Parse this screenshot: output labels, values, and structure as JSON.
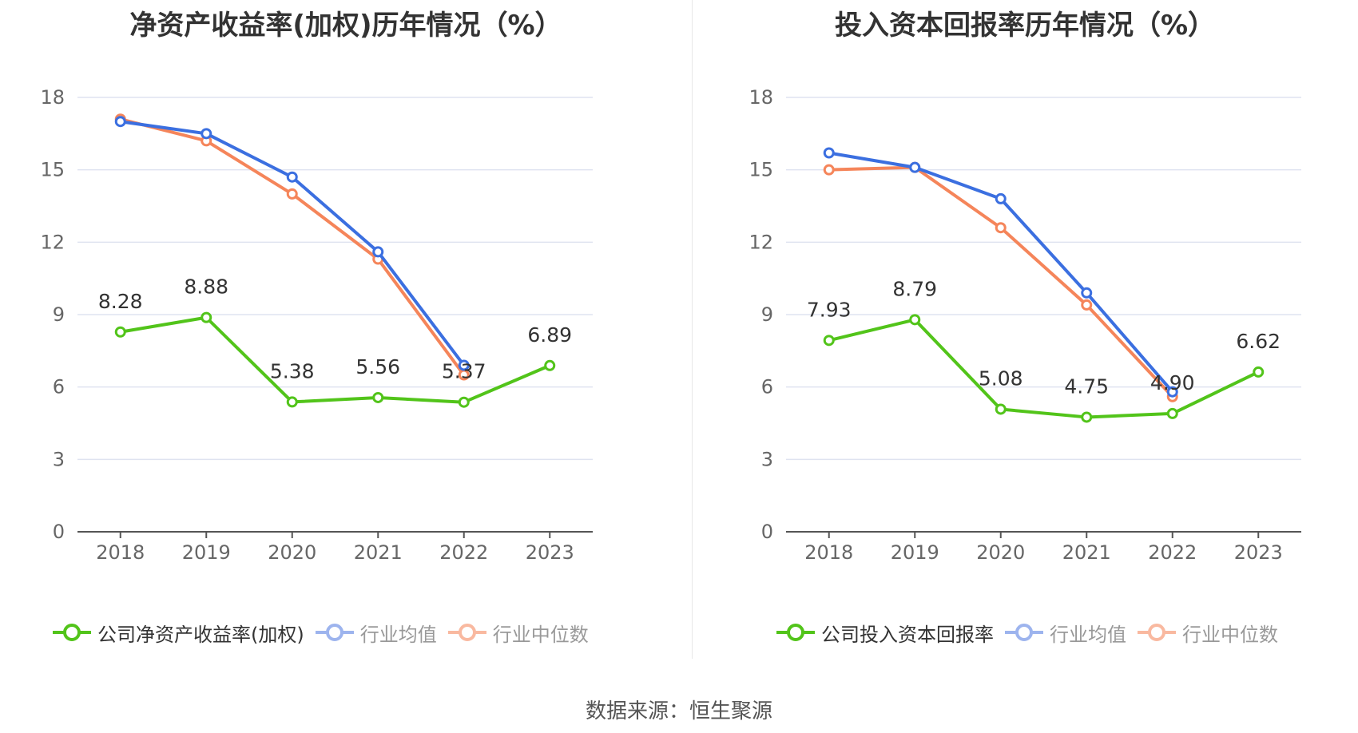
{
  "footer": {
    "source": "数据来源：恒生聚源"
  },
  "colors": {
    "company": "#52c41a",
    "average": "#3b6fe0",
    "median": "#f5855a"
  },
  "chart_data": [
    {
      "type": "line",
      "title": "净资产收益率(加权)历年情况（%）",
      "categories": [
        "2018",
        "2019",
        "2020",
        "2021",
        "2022",
        "2023"
      ],
      "ylim": [
        0,
        18
      ],
      "yticks": [
        "0",
        "3",
        "6",
        "9",
        "12",
        "15",
        "18"
      ],
      "grid": true,
      "legend_position": "bottom",
      "series": [
        {
          "name": "公司净资产收益率(加权)",
          "role": "company",
          "values": [
            8.28,
            8.88,
            5.38,
            5.56,
            5.37,
            6.89
          ],
          "labels": [
            "8.28",
            "8.88",
            "5.38",
            "5.56",
            "5.37",
            "6.89"
          ]
        },
        {
          "name": "行业均值",
          "role": "average",
          "values": [
            17.0,
            16.5,
            14.7,
            11.6,
            6.9,
            null
          ]
        },
        {
          "name": "行业中位数",
          "role": "median",
          "values": [
            17.1,
            16.2,
            14.0,
            11.3,
            6.5,
            null
          ]
        }
      ]
    },
    {
      "type": "line",
      "title": "投入资本回报率历年情况（%）",
      "categories": [
        "2018",
        "2019",
        "2020",
        "2021",
        "2022",
        "2023"
      ],
      "ylim": [
        0,
        18
      ],
      "yticks": [
        "0",
        "3",
        "6",
        "9",
        "12",
        "15",
        "18"
      ],
      "grid": true,
      "legend_position": "bottom",
      "series": [
        {
          "name": "公司投入资本回报率",
          "role": "company",
          "values": [
            7.93,
            8.79,
            5.08,
            4.75,
            4.9,
            6.62
          ],
          "labels": [
            "7.93",
            "8.79",
            "5.08",
            "4.75",
            "4.90",
            "6.62"
          ]
        },
        {
          "name": "行业均值",
          "role": "average",
          "values": [
            15.7,
            15.1,
            13.8,
            9.9,
            5.8,
            null
          ]
        },
        {
          "name": "行业中位数",
          "role": "median",
          "values": [
            15.0,
            15.1,
            12.6,
            9.4,
            5.6,
            null
          ]
        }
      ]
    }
  ]
}
